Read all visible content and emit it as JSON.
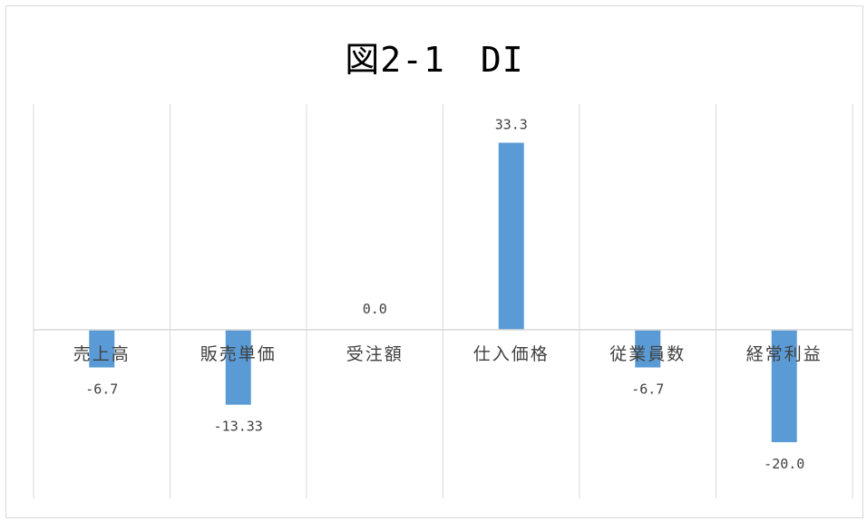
{
  "chart_data": {
    "type": "bar",
    "title": "図2-1　DI",
    "categories": [
      "売上高",
      "販売単価",
      "受注額",
      "仕入価格",
      "従業員数",
      "経常利益"
    ],
    "values": [
      -6.7,
      -13.33,
      0.0,
      33.3,
      -6.7,
      -20.0
    ],
    "data_labels": [
      "-6.7",
      "-13.33",
      "0.0",
      "33.3",
      "-6.7",
      "-20.0"
    ],
    "xlabel": "",
    "ylabel": "",
    "ylim": [
      -30,
      35
    ],
    "grid": "vertical category separators",
    "legend": "none",
    "bar_color": "#5b9bd5",
    "axis_color": "#d9d9d9",
    "text_color": "#404040"
  }
}
